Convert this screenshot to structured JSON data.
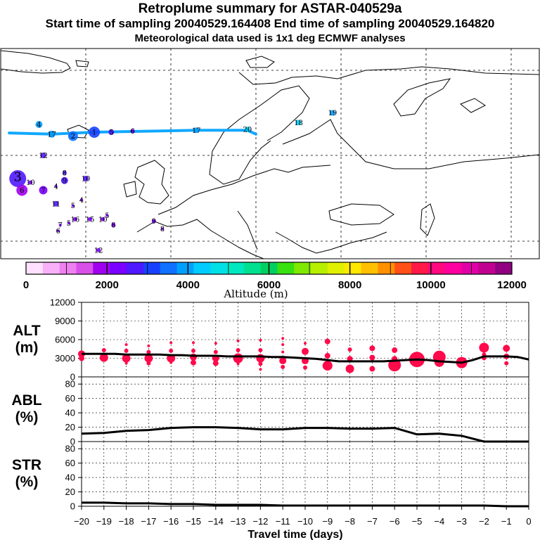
{
  "header": {
    "title": "Retroplume summary for ASTAR-040529a",
    "subtitle": "Start time of sampling 20040529.164408     End time of sampling 20040529.164820",
    "note": "Meteorological data used is 1x1 deg ECMWF analyses"
  },
  "map": {
    "plume_labels": [
      {
        "label": "1",
        "x": -28,
        "y": 76,
        "alt": 3300,
        "size": 8
      },
      {
        "label": "2",
        "x": -33,
        "y": 75,
        "alt": 3500,
        "size": 7
      },
      {
        "label": "3",
        "x": -38,
        "y": 75.5,
        "alt": 3900,
        "size": 5
      },
      {
        "label": "4",
        "x": -41,
        "y": 78,
        "alt": 4100,
        "size": 5
      },
      {
        "label": "5",
        "x": -24,
        "y": 76,
        "alt": 2800,
        "size": 4
      },
      {
        "label": "6",
        "x": -19,
        "y": 76.3,
        "alt": 2400,
        "size": 3
      },
      {
        "label": "12",
        "x": -40,
        "y": 70,
        "alt": 2800,
        "size": 4
      },
      {
        "label": "17",
        "x": -38,
        "y": 75.5,
        "alt": 3900,
        "size": 4
      },
      {
        "label": "17",
        "x": -4,
        "y": 76.5,
        "alt": 4100,
        "size": 4
      },
      {
        "label": "20",
        "x": 8,
        "y": 76.7,
        "alt": 4300,
        "size": 4
      },
      {
        "label": "18",
        "x": 20,
        "y": 78.5,
        "alt": 4300,
        "size": 4
      },
      {
        "label": "19",
        "x": 28,
        "y": 81,
        "alt": 4100,
        "size": 4
      },
      {
        "label": "3",
        "x": -46,
        "y": 64,
        "alt": 2500,
        "size": 12
      },
      {
        "label": "6",
        "x": -45,
        "y": 61,
        "alt": 2000,
        "size": 8
      },
      {
        "label": "7",
        "x": -40,
        "y": 61,
        "alt": 2300,
        "size": 6
      },
      {
        "label": "10",
        "x": -43,
        "y": 63,
        "alt": 2200,
        "size": 3
      },
      {
        "label": "8",
        "x": -35,
        "y": 65.5,
        "alt": 2700,
        "size": 3
      },
      {
        "label": "9",
        "x": -35,
        "y": 63.5,
        "alt": 2700,
        "size": 5
      },
      {
        "label": "10",
        "x": -30,
        "y": 64,
        "alt": 2600,
        "size": 4
      },
      {
        "label": "4",
        "x": -37,
        "y": 62,
        "alt": 2300,
        "size": 2
      },
      {
        "label": "4",
        "x": -31,
        "y": 58.5,
        "alt": 2300,
        "size": 2
      },
      {
        "label": "11",
        "x": -37,
        "y": 57.5,
        "alt": 2500,
        "size": 4
      },
      {
        "label": "5",
        "x": -33,
        "y": 57,
        "alt": 2300,
        "size": 2
      },
      {
        "label": "16",
        "x": -32.5,
        "y": 53.5,
        "alt": 2300,
        "size": 3
      },
      {
        "label": "5",
        "x": -34,
        "y": 52.5,
        "alt": 2300,
        "size": 2
      },
      {
        "label": "7",
        "x": -36,
        "y": 52,
        "alt": 2300,
        "size": 2
      },
      {
        "label": "6",
        "x": -36.5,
        "y": 50.5,
        "alt": 2300,
        "size": 2
      },
      {
        "label": "15",
        "x": -29,
        "y": 53.5,
        "alt": 2300,
        "size": 3
      },
      {
        "label": "10",
        "x": -26,
        "y": 53.5,
        "alt": 2300,
        "size": 3
      },
      {
        "label": "5",
        "x": -25,
        "y": 54.5,
        "alt": 2300,
        "size": 2
      },
      {
        "label": "8",
        "x": -23.5,
        "y": 52,
        "alt": 2300,
        "size": 3
      },
      {
        "label": "9",
        "x": -14,
        "y": 53,
        "alt": 2300,
        "size": 3
      },
      {
        "label": "8",
        "x": -12,
        "y": 51,
        "alt": 2300,
        "size": 2
      },
      {
        "label": "12",
        "x": -27,
        "y": 45.5,
        "alt": 2300,
        "size": 3
      }
    ]
  },
  "colorbar": {
    "ticks": [
      "0",
      "2000",
      "4000",
      "6000",
      "8000",
      "10000",
      "12000"
    ],
    "label": "Altitude (m)",
    "colors": [
      "#ffe0ff",
      "#f8b0f8",
      "#ee80f0",
      "#d850e8",
      "#a000f0",
      "#7a00ff",
      "#5018ff",
      "#1840ff",
      "#1070ff",
      "#00a0ff",
      "#00ccff",
      "#00e0e8",
      "#00e8c0",
      "#00e090",
      "#00d060",
      "#38e010",
      "#80e800",
      "#b8ee00",
      "#e0f000",
      "#ffe800",
      "#ffc000",
      "#ff9000",
      "#ff5018",
      "#ff1848",
      "#ff0880",
      "#ff00a0",
      "#e000a8",
      "#c00090",
      "#900080"
    ]
  },
  "chart_data": [
    {
      "type": "scatter",
      "ylabel": "ALT (m)",
      "ylim": [
        0,
        12000
      ],
      "yticks": [
        "0",
        "3000",
        "6000",
        "9000",
        "12000"
      ],
      "x": [
        -20,
        -19.5,
        -19,
        -18.5,
        -18,
        -17.5,
        -17,
        -16.5,
        -16,
        -15.5,
        -15,
        -14.5,
        -14,
        -13.5,
        -13,
        -12.5,
        -12,
        -11.5,
        -11,
        -10.5,
        -10,
        -9.5,
        -9,
        -8.5,
        -8,
        -7.5,
        -7,
        -6.5,
        -6,
        -5.5,
        -5,
        -4.5,
        -4,
        -3.5,
        -3,
        -2.5,
        -2,
        -1.5,
        -1,
        -0.5,
        0
      ],
      "median_altitude": [
        3700,
        3700,
        3700,
        3700,
        3600,
        3600,
        3600,
        3600,
        3500,
        3500,
        3400,
        3400,
        3400,
        3300,
        3300,
        3300,
        3300,
        3200,
        3200,
        3100,
        3000,
        2900,
        2700,
        2500,
        2500,
        2500,
        2500,
        2500,
        2600,
        2700,
        2800,
        2700,
        2500,
        2400,
        2300,
        2700,
        3300,
        3300,
        3300,
        3200,
        2800
      ],
      "points": [
        {
          "x": -20,
          "y": 3700,
          "s": 5
        },
        {
          "x": -20,
          "y": 3000,
          "s": 4
        },
        {
          "x": -19,
          "y": 4300,
          "s": 3
        },
        {
          "x": -19,
          "y": 3100,
          "s": 6
        },
        {
          "x": -18,
          "y": 5200,
          "s": 2
        },
        {
          "x": -18,
          "y": 4200,
          "s": 3
        },
        {
          "x": -18,
          "y": 3000,
          "s": 6
        },
        {
          "x": -18,
          "y": 2200,
          "s": 2
        },
        {
          "x": -17,
          "y": 5000,
          "s": 2
        },
        {
          "x": -17,
          "y": 4000,
          "s": 3
        },
        {
          "x": -17,
          "y": 3000,
          "s": 6
        },
        {
          "x": -17,
          "y": 2200,
          "s": 3
        },
        {
          "x": -16,
          "y": 5500,
          "s": 2
        },
        {
          "x": -16,
          "y": 4200,
          "s": 3
        },
        {
          "x": -16,
          "y": 3000,
          "s": 6
        },
        {
          "x": -16,
          "y": 2300,
          "s": 2
        },
        {
          "x": -15,
          "y": 5500,
          "s": 2
        },
        {
          "x": -15,
          "y": 4200,
          "s": 3
        },
        {
          "x": -15,
          "y": 3200,
          "s": 5
        },
        {
          "x": -15,
          "y": 2300,
          "s": 4
        },
        {
          "x": -14,
          "y": 5400,
          "s": 2
        },
        {
          "x": -14,
          "y": 4000,
          "s": 3
        },
        {
          "x": -14,
          "y": 3000,
          "s": 5
        },
        {
          "x": -14,
          "y": 2200,
          "s": 4
        },
        {
          "x": -13,
          "y": 5800,
          "s": 2
        },
        {
          "x": -13,
          "y": 4300,
          "s": 3
        },
        {
          "x": -13,
          "y": 3000,
          "s": 7
        },
        {
          "x": -13,
          "y": 2100,
          "s": 2
        },
        {
          "x": -12,
          "y": 5900,
          "s": 2
        },
        {
          "x": -12,
          "y": 4300,
          "s": 3
        },
        {
          "x": -12,
          "y": 3000,
          "s": 6
        },
        {
          "x": -12,
          "y": 2100,
          "s": 3
        },
        {
          "x": -12,
          "y": 1200,
          "s": 2
        },
        {
          "x": -11,
          "y": 6200,
          "s": 2
        },
        {
          "x": -11,
          "y": 5200,
          "s": 2
        },
        {
          "x": -11,
          "y": 4000,
          "s": 2
        },
        {
          "x": -11,
          "y": 2600,
          "s": 5
        },
        {
          "x": -11,
          "y": 1600,
          "s": 3
        },
        {
          "x": -10,
          "y": 5400,
          "s": 2
        },
        {
          "x": -10,
          "y": 4100,
          "s": 5
        },
        {
          "x": -10,
          "y": 2600,
          "s": 5
        },
        {
          "x": -10,
          "y": 1500,
          "s": 3
        },
        {
          "x": -9,
          "y": 5700,
          "s": 4
        },
        {
          "x": -9,
          "y": 3400,
          "s": 4
        },
        {
          "x": -9,
          "y": 1800,
          "s": 7
        },
        {
          "x": -8,
          "y": 4400,
          "s": 3
        },
        {
          "x": -8,
          "y": 2900,
          "s": 4
        },
        {
          "x": -8,
          "y": 1300,
          "s": 6
        },
        {
          "x": -7,
          "y": 4600,
          "s": 4
        },
        {
          "x": -7,
          "y": 3100,
          "s": 4
        },
        {
          "x": -7,
          "y": 1300,
          "s": 4
        },
        {
          "x": -6,
          "y": 4300,
          "s": 4
        },
        {
          "x": -6,
          "y": 2900,
          "s": 4
        },
        {
          "x": -6,
          "y": 1900,
          "s": 9
        },
        {
          "x": -5,
          "y": 2800,
          "s": 11
        },
        {
          "x": -4,
          "y": 3200,
          "s": 9
        },
        {
          "x": -4,
          "y": 2400,
          "s": 7
        },
        {
          "x": -3,
          "y": 2300,
          "s": 8
        },
        {
          "x": -2,
          "y": 4700,
          "s": 7
        },
        {
          "x": -2,
          "y": 3600,
          "s": 3
        },
        {
          "x": -2,
          "y": 3000,
          "s": 3
        },
        {
          "x": -1,
          "y": 4600,
          "s": 5
        },
        {
          "x": -1,
          "y": 3300,
          "s": 4
        },
        {
          "x": -1,
          "y": 2200,
          "s": 3
        }
      ]
    },
    {
      "type": "line",
      "ylabel": "ABL (%)",
      "ylim": [
        0,
        90
      ],
      "yticks": [
        "0",
        "20",
        "40",
        "60",
        "80"
      ],
      "x": [
        -20,
        -19,
        -18,
        -17,
        -16,
        -15,
        -14,
        -13,
        -12,
        -11,
        -10,
        -9,
        -8,
        -7,
        -6,
        -5,
        -4,
        -3,
        -2,
        -1,
        0
      ],
      "values": [
        11,
        12,
        15,
        16,
        19,
        20,
        20,
        19,
        17,
        17,
        19,
        19,
        18,
        18,
        19,
        10,
        11,
        8,
        0,
        0,
        0
      ]
    },
    {
      "type": "line",
      "ylabel": "STR (%)",
      "ylim": [
        0,
        90
      ],
      "yticks": [
        "0",
        "20",
        "40",
        "60",
        "80"
      ],
      "x": [
        -20,
        -19,
        -18,
        -17,
        -16,
        -15,
        -14,
        -13,
        -12,
        -11,
        -10,
        -9,
        -8,
        -7,
        -6,
        -5,
        -4,
        -3,
        -2,
        -1,
        0
      ],
      "values": [
        5,
        5,
        4,
        4,
        3,
        3,
        2,
        2,
        2,
        1,
        1,
        1,
        1,
        1,
        1,
        1,
        1,
        1,
        1,
        0,
        0
      ],
      "xlabel": "Travel time (days)",
      "xticks": [
        "−20",
        "−19",
        "−18",
        "−17",
        "−16",
        "−15",
        "−14",
        "−13",
        "−12",
        "−11",
        "−10",
        "−9",
        "−8",
        "−7",
        "−6",
        "−5",
        "−4",
        "−3",
        "−2",
        "−1",
        "0"
      ]
    }
  ]
}
